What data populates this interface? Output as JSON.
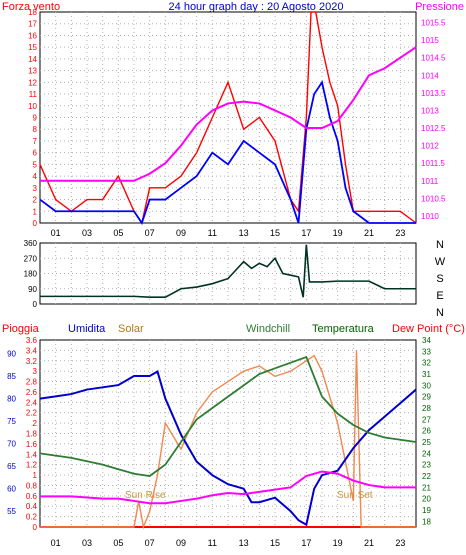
{
  "top_header": {
    "left_label": "Forza vento",
    "title": "24 hour graph day : 20 Agosto 2020",
    "right_label": "Pressione"
  },
  "wind_dir_labels": [
    "N",
    "W",
    "S",
    "E",
    "N"
  ],
  "bottom_header": {
    "labels": [
      "Pioggia",
      "Umidita",
      "Solar",
      "Windchill",
      "Temperatura",
      "Dew Point (°C)"
    ]
  },
  "annotations": {
    "sunrise": "Sun Rise",
    "sunset": "Sun Set"
  },
  "colors": {
    "wind": "#ff0000",
    "gust": "#0000ff",
    "pressure": "#ff00ff",
    "direction": "#003322",
    "rain": "#ff0000",
    "humidity": "#0000cc",
    "solar": "#f08850",
    "windchill": "#2e7d32",
    "temperature": "#006400",
    "dewpoint": "#ff00ff",
    "grid": "#b0b0b0"
  },
  "chart_data": [
    {
      "type": "line",
      "series": [
        {
          "name": "Forza vento",
          "axis": "left",
          "x": [
            0,
            1,
            2,
            3,
            4,
            5,
            6,
            6.5,
            7,
            8,
            9,
            10,
            11,
            12,
            13,
            14,
            15,
            16,
            16.5,
            17,
            17.3,
            17.6,
            18,
            18.5,
            19,
            19.5,
            20,
            21,
            22,
            23,
            24
          ],
          "y": [
            5,
            2,
            1,
            2,
            2,
            4,
            1,
            0,
            3,
            3,
            4,
            6,
            9,
            12,
            8,
            9,
            7,
            2,
            1,
            9,
            18,
            18,
            15,
            12,
            10,
            5,
            1,
            1,
            1,
            1,
            0
          ]
        },
        {
          "name": "",
          "axis": "left",
          "x": [
            0,
            1,
            2,
            3,
            4,
            5,
            6,
            6.5,
            7,
            8,
            9,
            10,
            11,
            12,
            13,
            14,
            15,
            16,
            16.5,
            17,
            17.5,
            18,
            18.5,
            19,
            19.5,
            20,
            21,
            22,
            23,
            24
          ],
          "y": [
            2,
            1,
            1,
            1,
            1,
            1,
            1,
            0,
            2,
            2,
            3,
            4,
            6,
            5,
            7,
            6,
            5,
            2,
            0,
            8,
            11,
            12,
            9,
            7,
            3,
            1,
            0,
            0,
            0,
            0
          ]
        },
        {
          "name": "Pressione",
          "axis": "right",
          "x": [
            0,
            1,
            2,
            3,
            4,
            5,
            6,
            7,
            8,
            9,
            10,
            11,
            12,
            13,
            14,
            15,
            16,
            17,
            18,
            19,
            20,
            21,
            22,
            23,
            24
          ],
          "y": [
            1011,
            1011,
            1011,
            1011,
            1011,
            1011,
            1011,
            1011.2,
            1011.5,
            1012,
            1012.6,
            1013,
            1013.2,
            1013.25,
            1013.2,
            1013,
            1012.8,
            1012.5,
            1012.5,
            1012.7,
            1013.3,
            1014,
            1014.2,
            1014.5,
            1014.8
          ]
        }
      ],
      "xticks": [
        "01",
        "03",
        "05",
        "07",
        "09",
        "11",
        "13",
        "15",
        "17",
        "19",
        "21",
        "23"
      ],
      "yticks_left": [
        0,
        1,
        2,
        3,
        4,
        5,
        6,
        7,
        8,
        9,
        10,
        11,
        12,
        13,
        14,
        15,
        16,
        17,
        18
      ],
      "yticks_right": [
        "1010",
        "1010.5",
        "1011",
        "1011.5",
        "1012",
        "1012.5",
        "1013",
        "1013.5",
        "1014",
        "1014.5",
        "1015",
        "1015.5"
      ],
      "ylim_left": [
        0,
        18
      ],
      "ylim_right": [
        1009.8,
        1015.8
      ],
      "xlim": [
        0,
        24
      ]
    },
    {
      "type": "line",
      "series": [
        {
          "name": "",
          "x": [
            0,
            1,
            2,
            3,
            4,
            5,
            6,
            7,
            8,
            9,
            10,
            11,
            12,
            12.5,
            13,
            13.5,
            14,
            14.5,
            15,
            15.5,
            16,
            16.5,
            16.8,
            17,
            17.2,
            18,
            19,
            20,
            21,
            22,
            23,
            24
          ],
          "y": [
            45,
            45,
            45,
            45,
            45,
            45,
            45,
            40,
            40,
            90,
            100,
            120,
            150,
            200,
            250,
            210,
            240,
            220,
            270,
            180,
            170,
            160,
            40,
            350,
            130,
            130,
            135,
            135,
            135,
            90,
            90,
            90
          ]
        }
      ],
      "yticks": [
        0,
        90,
        180,
        270,
        360
      ],
      "ylim": [
        0,
        360
      ],
      "xlim": [
        0,
        24
      ]
    },
    {
      "type": "line",
      "series": [
        {
          "name": "Pioggia",
          "axis": "rain",
          "x": [
            0,
            24
          ],
          "y": [
            0,
            0
          ]
        },
        {
          "name": "Umidita",
          "axis": "hum",
          "x": [
            0,
            1,
            2,
            3,
            4,
            5,
            6,
            7,
            7.5,
            8,
            9,
            10,
            11,
            12,
            13,
            13.5,
            14,
            15,
            16,
            16.5,
            17,
            17.5,
            18,
            19,
            20,
            21,
            22,
            23,
            24
          ],
          "y": [
            80,
            80.5,
            81,
            82,
            82.5,
            83,
            85,
            85,
            86,
            80,
            72,
            66,
            63,
            61,
            60,
            57,
            57,
            58,
            55,
            53,
            52,
            60,
            63,
            64,
            69,
            73,
            76,
            79,
            82
          ]
        },
        {
          "name": "Solar",
          "axis": "rain",
          "x": [
            0,
            6,
            6.3,
            6.6,
            7,
            7.5,
            8,
            9,
            10,
            11,
            12,
            13,
            14,
            15,
            16,
            17,
            17.5,
            18,
            19,
            20,
            20.2,
            20.5,
            24
          ],
          "y": [
            0,
            0,
            0.5,
            0,
            0.3,
            1,
            2,
            1.5,
            2.2,
            2.6,
            2.8,
            3,
            3.1,
            2.9,
            3,
            3.2,
            3.3,
            3.0,
            2.0,
            0.5,
            3.4,
            0,
            0
          ]
        },
        {
          "name": "Windchill",
          "axis": "temp",
          "x": [
            0,
            1,
            2,
            3,
            4,
            5,
            6,
            7,
            8,
            9,
            10,
            11,
            12,
            13,
            14,
            15,
            16,
            17,
            18,
            19,
            20,
            21,
            22,
            23,
            24
          ],
          "y": [
            24,
            23.8,
            23.6,
            23.3,
            23,
            22.6,
            22.2,
            22,
            23,
            25,
            27,
            28,
            29,
            30,
            31,
            31.5,
            32,
            32.5,
            29,
            27.5,
            26.5,
            25.8,
            25.4,
            25.2,
            25
          ]
        },
        {
          "name": "Dew Point (°C)",
          "axis": "temp",
          "x": [
            0,
            1,
            2,
            3,
            4,
            5,
            6,
            7,
            8,
            9,
            10,
            11,
            12,
            13,
            14,
            15,
            16,
            17,
            18,
            19,
            20,
            21,
            22,
            23,
            24
          ],
          "y": [
            20.2,
            20.2,
            20.2,
            20.1,
            20,
            20,
            19.8,
            19.6,
            19.6,
            19.8,
            20,
            20.3,
            20.5,
            20.4,
            20.6,
            20.8,
            21,
            22,
            22.4,
            22.2,
            21.6,
            21.2,
            21,
            21,
            21
          ]
        }
      ],
      "yticks_hum": [
        55,
        60,
        65,
        70,
        75,
        80,
        85,
        90
      ],
      "yticks_rain": [
        "0",
        "0.2",
        "0.4",
        "0.6",
        "0.8",
        "1",
        "1.2",
        "1.4",
        "1.6",
        "1.8",
        "2",
        "2.2",
        "2.4",
        "2.6",
        "2.8",
        "3",
        "3.2",
        "3.4",
        "3.6"
      ],
      "yticks_temp": [
        18,
        19,
        20,
        21,
        22,
        23,
        24,
        25,
        26,
        27,
        28,
        29,
        30,
        31,
        32,
        33,
        34
      ],
      "ylim_hum": [
        51.5,
        93
      ],
      "ylim_rain": [
        0,
        3.6
      ],
      "ylim_temp": [
        17.5,
        34
      ],
      "xlim": [
        0,
        24
      ]
    }
  ]
}
